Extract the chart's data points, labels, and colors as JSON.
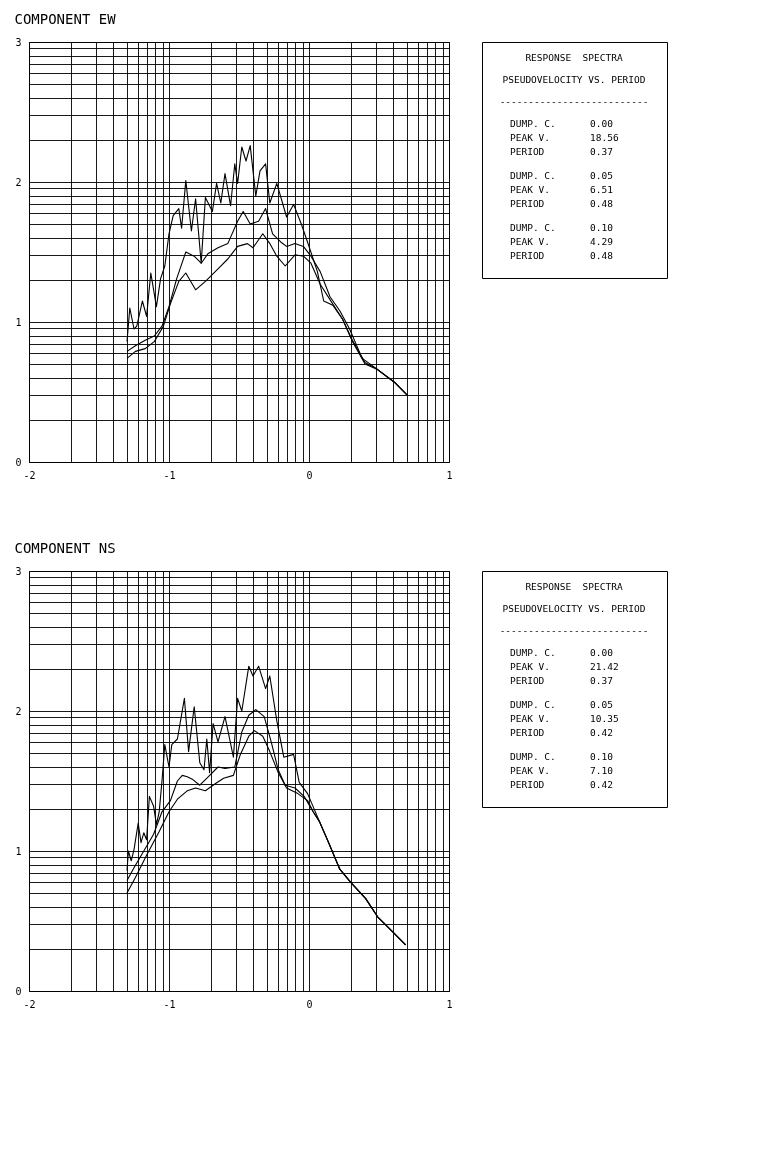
{
  "chart_data": [
    {
      "type": "line",
      "title": "COMPONENT EW",
      "annotations": [
        "RESPONSE  SPECTRA",
        "PSEUDOVELOCITY VS. PERIOD",
        "--------------------------",
        "DUMP. C.      0.00",
        "PEAK V.       18.56",
        "PERIOD        0.37",
        "DUMP. C.      0.05",
        "PEAK V.       6.51",
        "PERIOD        0.48",
        "DUMP. C.      0.10",
        "PEAK V.       4.29",
        "PERIOD        0.48"
      ],
      "xlim": [
        -2,
        1
      ],
      "ylim": [
        0,
        3
      ],
      "grid": true,
      "xticks": [
        -2,
        {
          "value": -1.699,
          "label": null
        },
        {
          "value": -1.523,
          "label": null
        },
        {
          "value": -1.398,
          "label": null
        },
        {
          "value": -1.301,
          "label": null
        },
        {
          "value": -1.222,
          "label": null
        },
        {
          "value": -1.155,
          "label": null
        },
        {
          "value": -1.097,
          "label": null
        },
        {
          "value": -1.046,
          "label": null
        },
        -1,
        {
          "value": -0.699,
          "label": null
        },
        {
          "value": -0.523,
          "label": null
        },
        {
          "value": -0.398,
          "label": null
        },
        {
          "value": -0.301,
          "label": null
        },
        {
          "value": -0.222,
          "label": null
        },
        {
          "value": -0.155,
          "label": null
        },
        {
          "value": -0.097,
          "label": null
        },
        {
          "value": -0.046,
          "label": null
        },
        0,
        {
          "value": 0.301,
          "label": null
        },
        {
          "value": 0.477,
          "label": null
        },
        {
          "value": 0.602,
          "label": null
        },
        {
          "value": 0.699,
          "label": null
        },
        {
          "value": 0.778,
          "label": null
        },
        {
          "value": 0.845,
          "label": null
        },
        {
          "value": 0.903,
          "label": null
        },
        {
          "value": 0.954,
          "label": null
        },
        1
      ],
      "yticks": [
        0,
        {
          "value": 0.301,
          "label": null
        },
        {
          "value": 0.477,
          "label": null
        },
        {
          "value": 0.602,
          "label": null
        },
        {
          "value": 0.699,
          "label": null
        },
        {
          "value": 0.778,
          "label": null
        },
        {
          "value": 0.845,
          "label": null
        },
        {
          "value": 0.903,
          "label": null
        },
        {
          "value": 0.954,
          "label": null
        },
        1,
        {
          "value": 1.301,
          "label": null
        },
        {
          "value": 1.477,
          "label": null
        },
        {
          "value": 1.602,
          "label": null
        },
        {
          "value": 1.699,
          "label": null
        },
        {
          "value": 1.778,
          "label": null
        },
        {
          "value": 1.845,
          "label": null
        },
        {
          "value": 1.903,
          "label": null
        },
        {
          "value": 1.954,
          "label": null
        },
        2,
        {
          "value": 2.301,
          "label": null
        },
        {
          "value": 2.477,
          "label": null
        },
        {
          "value": 2.602,
          "label": null
        },
        {
          "value": 2.699,
          "label": null
        },
        {
          "value": 2.778,
          "label": null
        },
        {
          "value": 2.845,
          "label": null
        },
        {
          "value": 2.903,
          "label": null
        },
        {
          "value": 2.954,
          "label": null
        },
        3
      ],
      "series": [
        {
          "color": "#000000",
          "x": [
            -1.3,
            -1.28,
            -1.25,
            -1.23,
            -1.19,
            -1.16,
            -1.13,
            -1.09,
            -1.06,
            -1.03,
            -1.0,
            -0.97,
            -0.93,
            -0.91,
            -0.88,
            -0.84,
            -0.81,
            -0.77,
            -0.74,
            -0.69,
            -0.66,
            -0.63,
            -0.6,
            -0.56,
            -0.53,
            -0.51,
            -0.48,
            -0.45,
            -0.42,
            -0.38,
            -0.35,
            -0.31,
            -0.28,
            -0.23,
            -0.16,
            -0.11,
            -0.055,
            0,
            0.06,
            0.105,
            0.17,
            0.24,
            0.31,
            0.4,
            0.49,
            0.61,
            0.7
          ],
          "values": [
            0.86,
            1.1,
            0.95,
            0.97,
            1.15,
            1.04,
            1.35,
            1.11,
            1.31,
            1.4,
            1.63,
            1.76,
            1.81,
            1.67,
            2.01,
            1.65,
            1.88,
            1.42,
            1.89,
            1.79,
            1.99,
            1.85,
            2.06,
            1.83,
            2.13,
            1.99,
            2.25,
            2.15,
            2.26,
            1.9,
            2.08,
            2.13,
            1.85,
            1.99,
            1.75,
            1.84,
            1.7,
            1.54,
            1.36,
            1.15,
            1.12,
            1.02,
            0.86,
            0.7,
            0.66,
            0.57,
            0.48
          ]
        },
        {
          "color": "#000000",
          "x": [
            -1.3,
            -1.24,
            -1.17,
            -1.105,
            -1.05,
            -1.0,
            -0.945,
            -0.88,
            -0.82,
            -0.77,
            -0.72,
            -0.65,
            -0.58,
            -0.51,
            -0.47,
            -0.42,
            -0.36,
            -0.31,
            -0.26,
            -0.2,
            -0.16,
            -0.1,
            -0.04,
            0.014,
            0.08,
            0.15,
            0.22,
            0.29,
            0.38,
            0.45,
            0.49,
            0.61,
            0.7
          ],
          "values": [
            0.79,
            0.83,
            0.87,
            0.9,
            0.97,
            1.11,
            1.31,
            1.5,
            1.47,
            1.42,
            1.49,
            1.53,
            1.56,
            1.72,
            1.79,
            1.7,
            1.72,
            1.81,
            1.63,
            1.57,
            1.54,
            1.56,
            1.54,
            1.47,
            1.36,
            1.18,
            1.08,
            0.95,
            0.74,
            0.69,
            0.66,
            0.57,
            0.48
          ]
        },
        {
          "color": "#000000",
          "x": [
            -1.3,
            -1.24,
            -1.17,
            -1.105,
            -1.04,
            -0.99,
            -0.93,
            -0.88,
            -0.81,
            -0.74,
            -0.65,
            -0.58,
            -0.51,
            -0.44,
            -0.4,
            -0.33,
            -0.28,
            -0.23,
            -0.17,
            -0.1,
            -0.04,
            0.014,
            0.08,
            0.15,
            0.24,
            0.31,
            0.4,
            0.49,
            0.61,
            0.7
          ],
          "values": [
            0.74,
            0.79,
            0.81,
            0.86,
            0.97,
            1.13,
            1.29,
            1.35,
            1.23,
            1.29,
            1.38,
            1.45,
            1.54,
            1.56,
            1.53,
            1.63,
            1.56,
            1.47,
            1.4,
            1.48,
            1.47,
            1.42,
            1.27,
            1.16,
            1.02,
            0.87,
            0.71,
            0.66,
            0.57,
            0.48
          ]
        }
      ]
    },
    {
      "type": "line",
      "title": "COMPONENT NS",
      "annotations": [
        "RESPONSE  SPECTRA",
        "PSEUDOVELOCITY VS. PERIOD",
        "--------------------------",
        "DUMP. C.      0.00",
        "PEAK V.       21.42",
        "PERIOD        0.37",
        "DUMP. C.      0.05",
        "PEAK V.       10.35",
        "PERIOD        0.42",
        "DUMP. C.      0.10",
        "PEAK V.       7.10",
        "PERIOD        0.42"
      ],
      "xlim": [
        -2,
        1
      ],
      "ylim": [
        0,
        3
      ],
      "grid": true,
      "xticks": [
        -2,
        {
          "value": -1.699,
          "label": null
        },
        {
          "value": -1.523,
          "label": null
        },
        {
          "value": -1.398,
          "label": null
        },
        {
          "value": -1.301,
          "label": null
        },
        {
          "value": -1.222,
          "label": null
        },
        {
          "value": -1.155,
          "label": null
        },
        {
          "value": -1.097,
          "label": null
        },
        {
          "value": -1.046,
          "label": null
        },
        -1,
        {
          "value": -0.699,
          "label": null
        },
        {
          "value": -0.523,
          "label": null
        },
        {
          "value": -0.398,
          "label": null
        },
        {
          "value": -0.301,
          "label": null
        },
        {
          "value": -0.222,
          "label": null
        },
        {
          "value": -0.155,
          "label": null
        },
        {
          "value": -0.097,
          "label": null
        },
        {
          "value": -0.046,
          "label": null
        },
        0,
        {
          "value": 0.301,
          "label": null
        },
        {
          "value": 0.477,
          "label": null
        },
        {
          "value": 0.602,
          "label": null
        },
        {
          "value": 0.699,
          "label": null
        },
        {
          "value": 0.778,
          "label": null
        },
        {
          "value": 0.845,
          "label": null
        },
        {
          "value": 0.903,
          "label": null
        },
        {
          "value": 0.954,
          "label": null
        },
        1
      ],
      "yticks": [
        0,
        {
          "value": 0.301,
          "label": null
        },
        {
          "value": 0.477,
          "label": null
        },
        {
          "value": 0.602,
          "label": null
        },
        {
          "value": 0.699,
          "label": null
        },
        {
          "value": 0.778,
          "label": null
        },
        {
          "value": 0.845,
          "label": null
        },
        {
          "value": 0.903,
          "label": null
        },
        {
          "value": 0.954,
          "label": null
        },
        1,
        {
          "value": 1.301,
          "label": null
        },
        {
          "value": 1.477,
          "label": null
        },
        {
          "value": 1.602,
          "label": null
        },
        {
          "value": 1.699,
          "label": null
        },
        {
          "value": 1.778,
          "label": null
        },
        {
          "value": 1.845,
          "label": null
        },
        {
          "value": 1.903,
          "label": null
        },
        {
          "value": 1.954,
          "label": null
        },
        2,
        {
          "value": 2.301,
          "label": null
        },
        {
          "value": 2.477,
          "label": null
        },
        {
          "value": 2.602,
          "label": null
        },
        {
          "value": 2.699,
          "label": null
        },
        {
          "value": 2.778,
          "label": null
        },
        {
          "value": 2.845,
          "label": null
        },
        {
          "value": 2.903,
          "label": null
        },
        {
          "value": 2.954,
          "label": null
        },
        3
      ],
      "series": [
        {
          "color": "#000000",
          "x": [
            -1.3,
            -1.29,
            -1.27,
            -1.25,
            -1.22,
            -1.2,
            -1.18,
            -1.16,
            -1.14,
            -1.11,
            -1.09,
            -1.07,
            -1.05,
            -1.03,
            -1.0,
            -0.98,
            -0.94,
            -0.89,
            -0.86,
            -0.82,
            -0.78,
            -0.75,
            -0.73,
            -0.71,
            -0.685,
            -0.65,
            -0.6,
            -0.54,
            -0.51,
            -0.48,
            -0.43,
            -0.4,
            -0.36,
            -0.31,
            -0.28,
            -0.23,
            -0.18,
            -0.11,
            -0.07,
            -0.01,
            0.075,
            0.14,
            0.22,
            0.295,
            0.405,
            0.49,
            0.58,
            0.69
          ],
          "values": [
            0.86,
            1.0,
            0.93,
            1.01,
            1.2,
            1.06,
            1.13,
            1.08,
            1.39,
            1.32,
            1.19,
            1.28,
            1.5,
            1.76,
            1.6,
            1.76,
            1.8,
            2.09,
            1.71,
            2.03,
            1.63,
            1.58,
            1.8,
            1.56,
            1.91,
            1.78,
            1.96,
            1.67,
            2.09,
            2.0,
            2.32,
            2.25,
            2.32,
            2.16,
            2.25,
            1.93,
            1.67,
            1.69,
            1.49,
            1.41,
            1.21,
            1.06,
            0.87,
            0.78,
            0.66,
            0.53,
            0.44,
            0.33
          ]
        },
        {
          "color": "#000000",
          "x": [
            -1.3,
            -1.25,
            -1.18,
            -1.11,
            -1.05,
            -0.99,
            -0.94,
            -0.905,
            -0.87,
            -0.83,
            -0.78,
            -0.72,
            -0.65,
            -0.6,
            -0.53,
            -0.48,
            -0.43,
            -0.38,
            -0.32,
            -0.27,
            -0.22,
            -0.17,
            -0.1,
            -0.035,
            0.03,
            0.075,
            0.14,
            0.22,
            0.295,
            0.405,
            0.49,
            0.58,
            0.69
          ],
          "values": [
            0.79,
            0.88,
            1.0,
            1.12,
            1.28,
            1.36,
            1.5,
            1.54,
            1.53,
            1.51,
            1.47,
            1.53,
            1.6,
            1.59,
            1.6,
            1.85,
            1.97,
            2.01,
            1.96,
            1.78,
            1.58,
            1.47,
            1.45,
            1.39,
            1.28,
            1.21,
            1.06,
            0.87,
            0.78,
            0.66,
            0.53,
            0.44,
            0.33
          ]
        },
        {
          "color": "#000000",
          "x": [
            -1.3,
            -1.24,
            -1.16,
            -1.07,
            -1.0,
            -0.94,
            -0.87,
            -0.81,
            -0.74,
            -0.67,
            -0.61,
            -0.54,
            -0.49,
            -0.43,
            -0.39,
            -0.33,
            -0.28,
            -0.22,
            -0.16,
            -0.08,
            -0.01,
            0.03,
            0.075,
            0.14,
            0.22,
            0.295,
            0.405,
            0.49,
            0.58,
            0.69
          ],
          "values": [
            0.7,
            0.81,
            0.97,
            1.14,
            1.28,
            1.37,
            1.43,
            1.45,
            1.43,
            1.48,
            1.52,
            1.54,
            1.69,
            1.82,
            1.86,
            1.82,
            1.71,
            1.56,
            1.45,
            1.41,
            1.36,
            1.28,
            1.21,
            1.06,
            0.87,
            0.78,
            0.66,
            0.53,
            0.44,
            0.33
          ]
        }
      ]
    }
  ]
}
